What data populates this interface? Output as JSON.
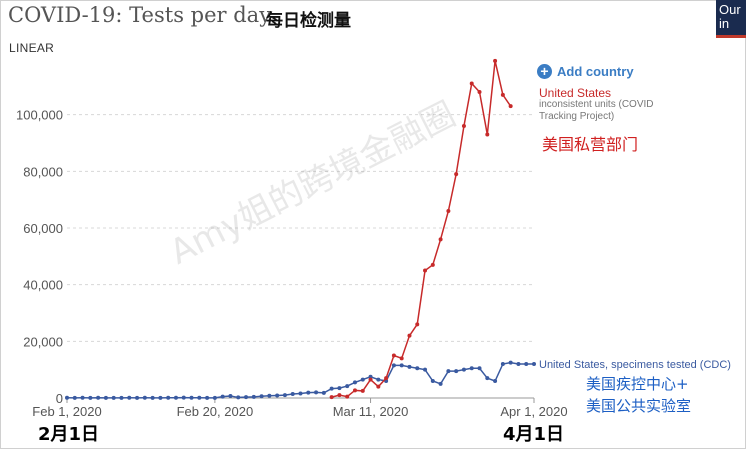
{
  "header": {
    "title": "COVID-19: Tests per day",
    "title_cn": "每日检测量",
    "logo_text": "Our\nin"
  },
  "controls": {
    "scale_label": "LINEAR",
    "add_country_label": "Add country"
  },
  "annotations": {
    "us_name": "United States",
    "us_note": "inconsistent units (COVID Tracking Project)",
    "us_cn": "美国私营部门",
    "cdc_name": "United States, specimens tested (CDC)",
    "cdc_cn": "美国疾控中心+\n美国公共实验室",
    "start_cn": "2月1日",
    "end_cn": "4月1日",
    "watermark": "Amy姐的跨境金融圈"
  },
  "colors": {
    "us": "#c72a2a",
    "cdc": "#3a5aa0",
    "grid": "#d8d8d8"
  },
  "chart_data": {
    "type": "line",
    "title": "COVID-19: Tests per day",
    "xlabel": "",
    "ylabel": "",
    "ylim": [
      0,
      120000
    ],
    "y_ticks": [
      0,
      20000,
      40000,
      60000,
      80000,
      100000
    ],
    "y_tick_labels": [
      "0",
      "20,000",
      "40,000",
      "60,000",
      "80,000",
      "100,000"
    ],
    "x_start": "2020-02-01",
    "x_end": "2020-04-01",
    "x_ticks": [
      "2020-02-01",
      "2020-02-20",
      "2020-03-11",
      "2020-04-01"
    ],
    "x_tick_labels": [
      "Feb 1, 2020",
      "Feb 20, 2020",
      "Mar 11, 2020",
      "Apr 1, 2020"
    ],
    "grid": true,
    "series": [
      {
        "name": "United States, specimens tested (CDC)",
        "dates": [
          "2020-02-01",
          "2020-02-02",
          "2020-02-03",
          "2020-02-04",
          "2020-02-05",
          "2020-02-06",
          "2020-02-07",
          "2020-02-08",
          "2020-02-09",
          "2020-02-10",
          "2020-02-11",
          "2020-02-12",
          "2020-02-13",
          "2020-02-14",
          "2020-02-15",
          "2020-02-16",
          "2020-02-17",
          "2020-02-18",
          "2020-02-19",
          "2020-02-20",
          "2020-02-21",
          "2020-02-22",
          "2020-02-23",
          "2020-02-24",
          "2020-02-25",
          "2020-02-26",
          "2020-02-27",
          "2020-02-28",
          "2020-02-29",
          "2020-03-01",
          "2020-03-02",
          "2020-03-03",
          "2020-03-04",
          "2020-03-05",
          "2020-03-06",
          "2020-03-07",
          "2020-03-08",
          "2020-03-09",
          "2020-03-10",
          "2020-03-11",
          "2020-03-12",
          "2020-03-13",
          "2020-03-14",
          "2020-03-15",
          "2020-03-16",
          "2020-03-17",
          "2020-03-18",
          "2020-03-19",
          "2020-03-20",
          "2020-03-21",
          "2020-03-22",
          "2020-03-23",
          "2020-03-24",
          "2020-03-25",
          "2020-03-26",
          "2020-03-27",
          "2020-03-28",
          "2020-03-29",
          "2020-03-30",
          "2020-03-31",
          "2020-04-01"
        ],
        "values": [
          100,
          50,
          80,
          60,
          100,
          50,
          40,
          60,
          70,
          50,
          80,
          60,
          50,
          80,
          100,
          150,
          80,
          100,
          50,
          60,
          500,
          700,
          200,
          300,
          400,
          600,
          800,
          900,
          1000,
          1400,
          1600,
          1900,
          2000,
          1800,
          3300,
          3500,
          4200,
          5500,
          6500,
          7500,
          6500,
          6000,
          11500,
          11500,
          11000,
          10500,
          10000,
          6000,
          5000,
          9500,
          9500,
          10000,
          10500,
          10500,
          7000,
          6000,
          12000,
          12500,
          12000,
          12000,
          12000
        ]
      },
      {
        "name": "United States",
        "dates": [
          "2020-03-06",
          "2020-03-07",
          "2020-03-08",
          "2020-03-09",
          "2020-03-10",
          "2020-03-11",
          "2020-03-12",
          "2020-03-13",
          "2020-03-14",
          "2020-03-15",
          "2020-03-16",
          "2020-03-17",
          "2020-03-18",
          "2020-03-19",
          "2020-03-20",
          "2020-03-21",
          "2020-03-22",
          "2020-03-23",
          "2020-03-24",
          "2020-03-25",
          "2020-03-26",
          "2020-03-27",
          "2020-03-28",
          "2020-03-29",
          "2020-03-30",
          "2020-03-31"
        ],
        "values": [
          300,
          1000,
          500,
          2700,
          2500,
          6500,
          4000,
          7000,
          15000,
          14000,
          22000,
          26000,
          45000,
          47000,
          56000,
          66000,
          79000,
          96000,
          111000,
          108000,
          93000,
          119000,
          107000,
          103000,
          null,
          null
        ]
      }
    ]
  }
}
